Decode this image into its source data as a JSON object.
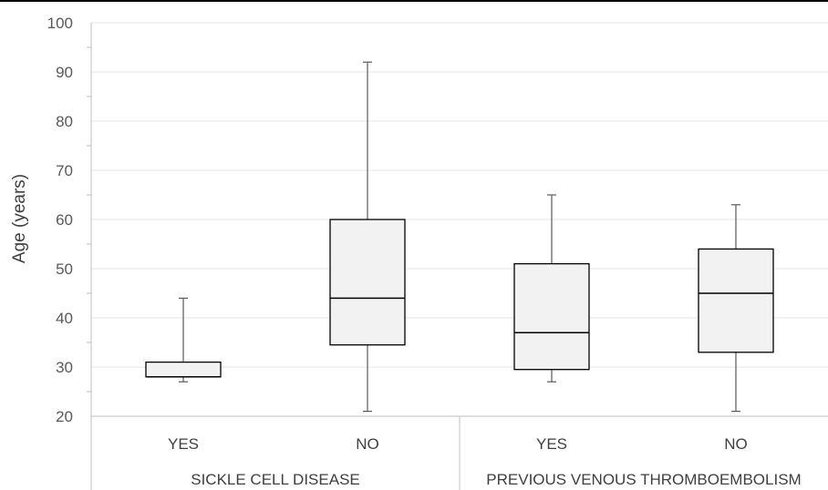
{
  "chart_data": {
    "type": "boxplot",
    "ylabel": "Age (years)",
    "ylim": [
      20,
      100
    ],
    "yticks": [
      20,
      30,
      40,
      50,
      60,
      70,
      80,
      90,
      100
    ],
    "grid": true,
    "groups": [
      {
        "label": "SICKLE CELL DISEASE",
        "categories": [
          "YES",
          "NO"
        ]
      },
      {
        "label": "PREVIOUS VENOUS THROMBOEMBOLISM",
        "categories": [
          "YES",
          "NO"
        ]
      }
    ],
    "boxes": [
      {
        "group": "SICKLE CELL DISEASE",
        "category": "YES",
        "min": 27,
        "q1": 28,
        "median": 28,
        "q3": 31,
        "max": 44
      },
      {
        "group": "SICKLE CELL DISEASE",
        "category": "NO",
        "min": 21,
        "q1": 34.5,
        "median": 44,
        "q3": 60,
        "max": 92
      },
      {
        "group": "PREVIOUS VENOUS THROMBOEMBOLISM",
        "category": "YES",
        "min": 27,
        "q1": 29.5,
        "median": 37,
        "q3": 51,
        "max": 65
      },
      {
        "group": "PREVIOUS VENOUS THROMBOEMBOLISM",
        "category": "NO",
        "min": 21,
        "q1": 33,
        "median": 45,
        "q3": 54,
        "max": 63
      }
    ],
    "colors": {
      "box_fill": "#f2f2f2",
      "box_stroke": "#000000",
      "whisker": "#595959",
      "grid": "#e6e6e6",
      "axis": "#bfbfbf"
    }
  }
}
